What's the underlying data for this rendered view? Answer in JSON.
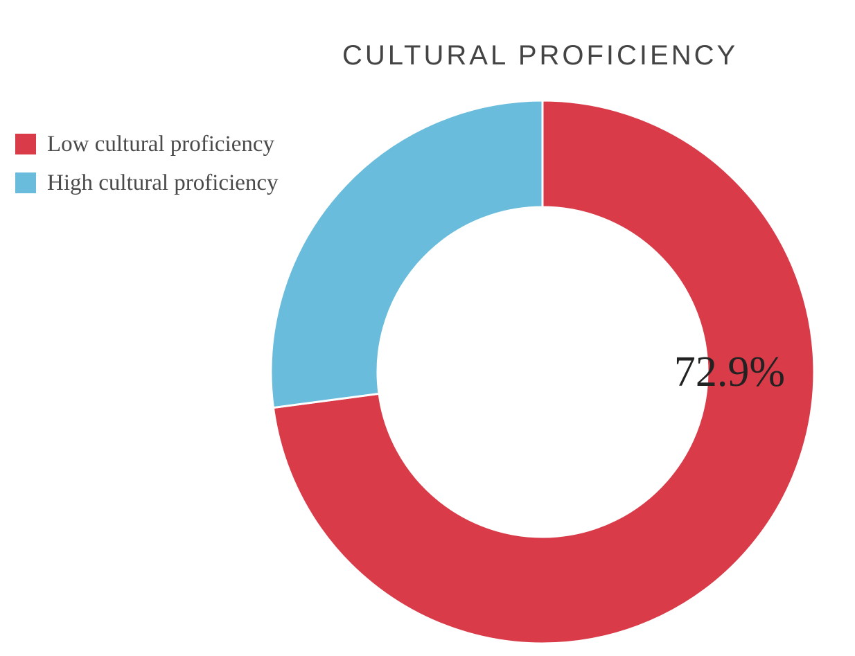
{
  "chart_data": {
    "type": "pie",
    "title": "CULTURAL PROFICIENCY",
    "categories": [
      "Low cultural proficiency",
      "High cultural proficiency"
    ],
    "values": [
      72.9,
      27.1
    ],
    "colors": [
      "#d93b49",
      "#69bcdb"
    ],
    "data_labels": [
      "72.9%",
      ""
    ],
    "donut": true,
    "legend_position": "top-left"
  }
}
